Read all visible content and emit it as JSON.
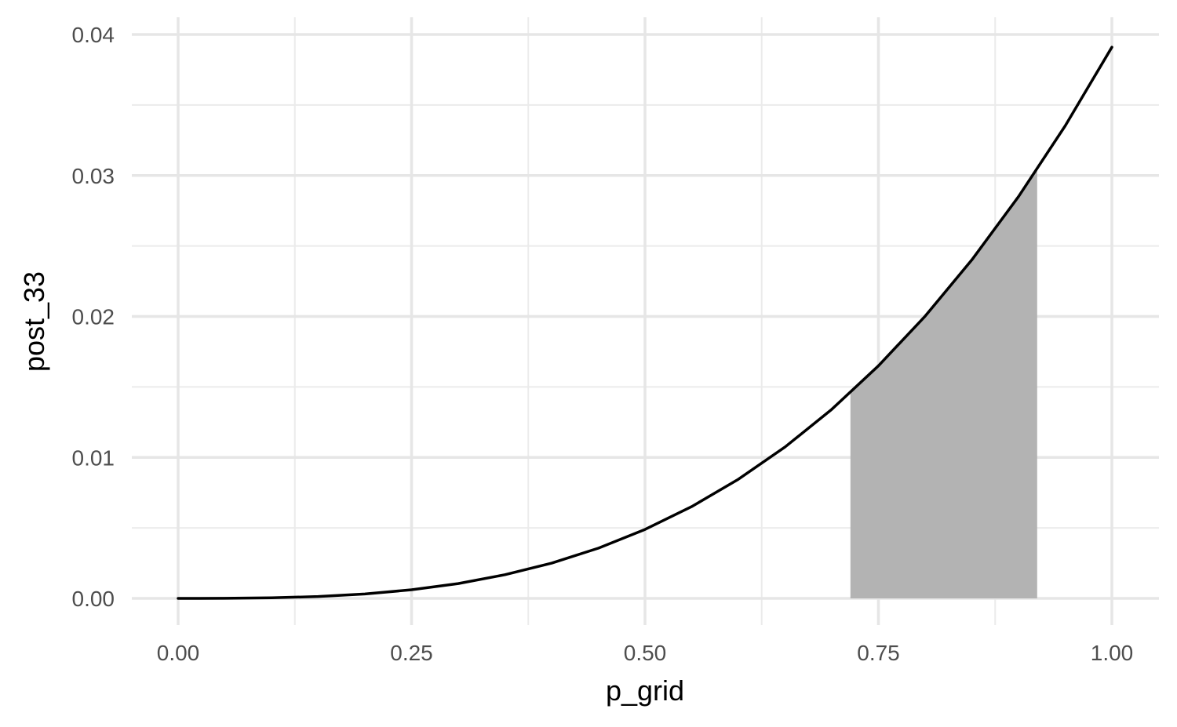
{
  "chart_data": {
    "type": "area",
    "title": "",
    "xlabel": "p_grid",
    "ylabel": "post_33",
    "xlim": [
      0,
      1
    ],
    "ylim": [
      0,
      0.04
    ],
    "x_ticks": [
      {
        "value": 0,
        "label": "0.00"
      },
      {
        "value": 0.25,
        "label": "0.25"
      },
      {
        "value": 0.5,
        "label": "0.50"
      },
      {
        "value": 0.75,
        "label": "0.75"
      },
      {
        "value": 1,
        "label": "1.00"
      }
    ],
    "y_ticks": [
      {
        "value": 0,
        "label": "0.00"
      },
      {
        "value": 0.01,
        "label": "0.01"
      },
      {
        "value": 0.02,
        "label": "0.02"
      },
      {
        "value": 0.03,
        "label": "0.03"
      },
      {
        "value": 0.04,
        "label": "0.04"
      }
    ],
    "grid": true,
    "series": [
      {
        "type": "line",
        "color": "#000000",
        "x": [
          0,
          0.05,
          0.1,
          0.15,
          0.2,
          0.25,
          0.3,
          0.35,
          0.4,
          0.45,
          0.5,
          0.55,
          0.6,
          0.65,
          0.7,
          0.75,
          0.8,
          0.85,
          0.9,
          0.95,
          1
        ],
        "y": [
          0,
          5e-06,
          4e-05,
          0.00013,
          0.00031,
          0.00061,
          0.00105,
          0.00168,
          0.0025,
          0.00356,
          0.00489,
          0.00651,
          0.00845,
          0.01074,
          0.01341,
          0.0165,
          0.02002,
          0.02401,
          0.0285,
          0.03352,
          0.0391
        ]
      }
    ],
    "shaded_region": {
      "color": "#b3b3b3",
      "x_from": 0.72,
      "x_to": 0.92
    }
  }
}
